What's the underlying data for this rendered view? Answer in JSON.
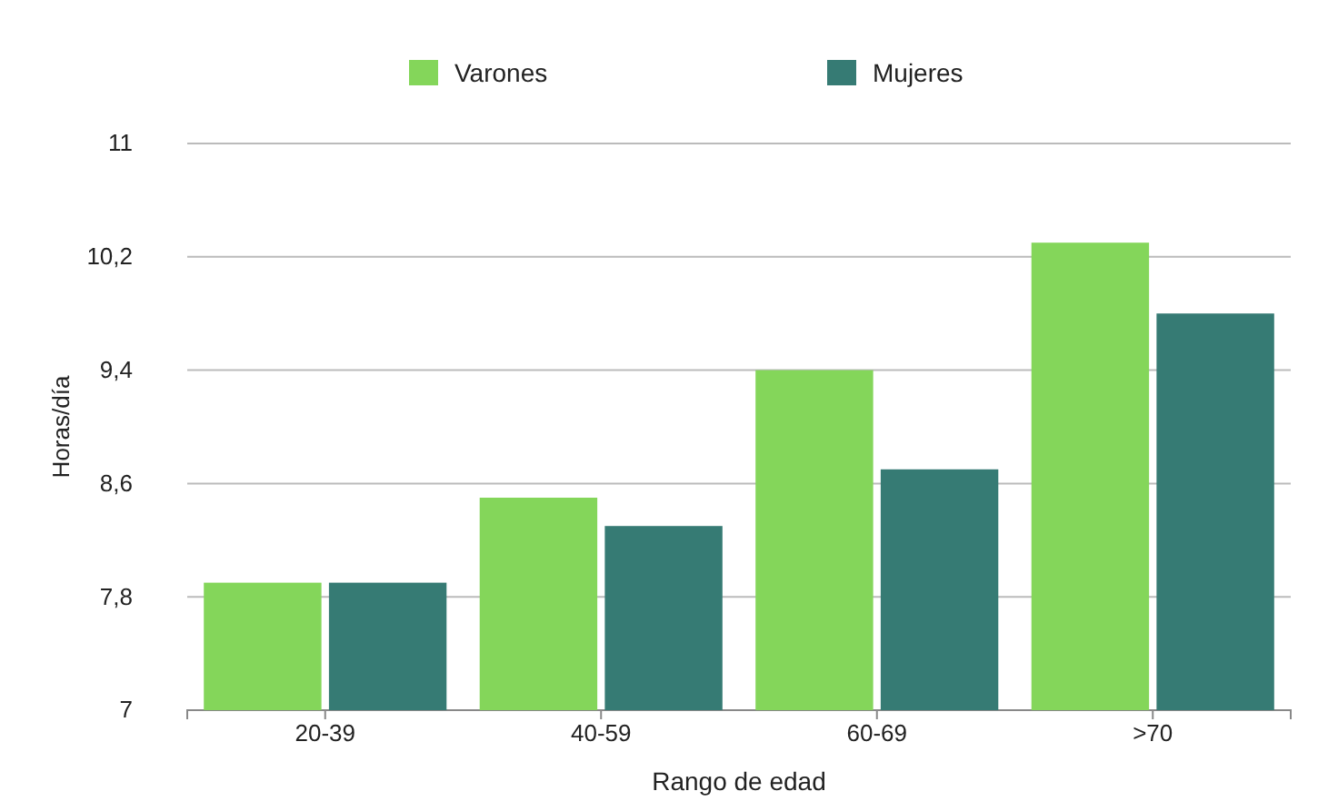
{
  "chart_data": {
    "type": "bar",
    "xlabel": "Rango de edad",
    "ylabel": "Horas/día",
    "categories": [
      "20-39",
      "40-59",
      "60-69",
      ">70"
    ],
    "series": [
      {
        "name": "Varones",
        "color": "#84d65a",
        "values": [
          7.9,
          8.5,
          9.4,
          10.3
        ]
      },
      {
        "name": "Mujeres",
        "color": "#367b74",
        "values": [
          7.9,
          8.3,
          8.7,
          9.8
        ]
      }
    ],
    "ylim": [
      7,
      11
    ],
    "yticks": [
      7,
      {
        "value": 7.8,
        "label": "7,8"
      },
      {
        "value": 8.6,
        "label": "8,6"
      },
      {
        "value": 9.4,
        "label": "9,4"
      },
      {
        "value": 10.2,
        "label": "10,2"
      },
      11
    ],
    "grid": "y",
    "legend": "top"
  }
}
